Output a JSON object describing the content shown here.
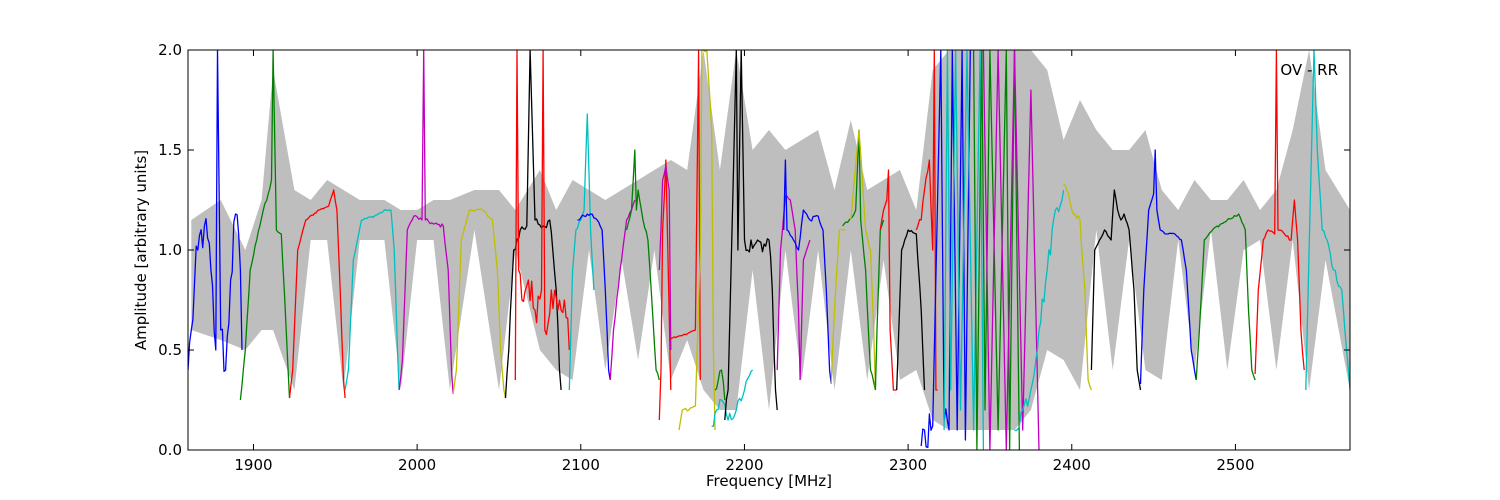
{
  "chart_data": {
    "type": "line",
    "title": "",
    "xlabel": "Frequency [MHz]",
    "ylabel": "Amplitude [arbitrary units]",
    "xlim": [
      1860,
      2570
    ],
    "ylim": [
      0.0,
      2.0
    ],
    "xticks": [
      1900,
      2000,
      2100,
      2200,
      2300,
      2400,
      2500
    ],
    "yticks": [
      0.0,
      0.5,
      1.0,
      1.5,
      2.0
    ],
    "xtick_labels": [
      "1900",
      "2000",
      "2100",
      "2200",
      "2300",
      "2400",
      "2500"
    ],
    "ytick_labels": [
      "0.0",
      "0.5",
      "1.0",
      "1.5",
      "2.0"
    ],
    "annotation": "OV - RR",
    "grid": false,
    "background_band": {
      "color": "#bebebe",
      "x": [
        1862,
        1880,
        1895,
        1905,
        1912,
        1925,
        1935,
        1945,
        1955,
        1965,
        1980,
        1990,
        2000,
        2010,
        2020,
        2035,
        2050,
        2060,
        2075,
        2085,
        2095,
        2105,
        2115,
        2125,
        2135,
        2145,
        2155,
        2165,
        2175,
        2185,
        2195,
        2205,
        2215,
        2225,
        2235,
        2245,
        2255,
        2265,
        2275,
        2285,
        2295,
        2305,
        2315,
        2325,
        2335,
        2345,
        2355,
        2365,
        2375,
        2385,
        2395,
        2405,
        2415,
        2425,
        2435,
        2445,
        2455,
        2465,
        2475,
        2485,
        2495,
        2505,
        2515,
        2525,
        2535,
        2545,
        2555,
        2570
      ],
      "upper": [
        1.15,
        1.25,
        1.0,
        1.25,
        1.9,
        1.3,
        1.25,
        1.35,
        1.3,
        1.25,
        1.25,
        1.2,
        1.2,
        1.25,
        1.25,
        1.3,
        1.3,
        1.2,
        1.4,
        1.2,
        1.35,
        1.3,
        1.25,
        1.3,
        1.35,
        1.4,
        1.45,
        1.4,
        2.0,
        1.4,
        2.0,
        1.5,
        1.6,
        1.5,
        1.55,
        1.6,
        1.3,
        1.65,
        1.3,
        1.35,
        1.4,
        1.2,
        1.9,
        2.0,
        2.0,
        2.0,
        2.0,
        2.0,
        2.0,
        1.9,
        1.55,
        1.75,
        1.6,
        1.5,
        1.5,
        1.6,
        1.3,
        1.2,
        1.35,
        1.25,
        1.25,
        1.35,
        1.2,
        1.3,
        1.6,
        2.0,
        1.4,
        1.2
      ],
      "lower": [
        0.6,
        0.55,
        0.5,
        0.6,
        0.6,
        0.3,
        1.05,
        1.05,
        0.3,
        1.05,
        1.05,
        0.3,
        1.05,
        1.05,
        0.3,
        1.1,
        0.3,
        1.0,
        0.5,
        0.4,
        0.35,
        1.0,
        0.4,
        0.95,
        0.45,
        1.0,
        0.35,
        0.55,
        0.3,
        0.2,
        0.2,
        0.9,
        0.2,
        1.0,
        0.35,
        1.0,
        0.3,
        1.0,
        0.35,
        0.95,
        0.35,
        0.4,
        0.15,
        0.1,
        0.1,
        0.1,
        0.1,
        0.1,
        0.2,
        0.5,
        0.45,
        0.3,
        1.1,
        0.4,
        1.05,
        0.4,
        0.35,
        1.05,
        0.4,
        1.1,
        0.4,
        1.0,
        1.05,
        0.4,
        1.05,
        0.3,
        0.95,
        0.3
      ]
    },
    "series": [
      {
        "color": "#0000ff",
        "x": [
          1860,
          1862,
          1866,
          1870,
          1874,
          1877,
          1878,
          1880,
          1883,
          1886,
          1889,
          1892,
          1893
        ],
        "y": [
          0.4,
          0.6,
          1.0,
          1.12,
          0.9,
          0.5,
          2.0,
          0.6,
          0.4,
          0.85,
          1.18,
          0.9,
          0.5
        ],
        "noise": 0.12
      },
      {
        "color": "#008000",
        "x": [
          1892,
          1895,
          1898,
          1902,
          1906,
          1909,
          1911,
          1912,
          1914,
          1917,
          1920,
          1922
        ],
        "y": [
          0.25,
          0.5,
          0.9,
          1.05,
          1.2,
          1.28,
          1.35,
          2.0,
          1.1,
          1.08,
          0.6,
          0.26
        ],
        "noise": 0.01
      },
      {
        "color": "#ff0000",
        "x": [
          1922,
          1924,
          1927,
          1932,
          1940,
          1946,
          1949,
          1951,
          1953,
          1955,
          1956
        ],
        "y": [
          0.26,
          0.4,
          1.0,
          1.15,
          1.2,
          1.22,
          1.3,
          1.2,
          0.8,
          0.35,
          0.26
        ],
        "noise": 0.005
      },
      {
        "color": "#00bfbf",
        "x": [
          1956,
          1958,
          1961,
          1966,
          1974,
          1981,
          1984,
          1986,
          1988,
          1989
        ],
        "y": [
          0.3,
          0.4,
          0.95,
          1.15,
          1.17,
          1.2,
          1.2,
          1.0,
          0.5,
          0.3
        ],
        "noise": 0.005
      },
      {
        "color": "#bf00bf",
        "x": [
          1989,
          1991,
          1994,
          1998,
          2003,
          2004,
          2005,
          2010,
          2016,
          2019,
          2021,
          2022
        ],
        "y": [
          0.3,
          0.45,
          1.1,
          1.17,
          1.15,
          2.0,
          1.15,
          1.13,
          1.12,
          0.9,
          0.4,
          0.28
        ],
        "noise": 0.01
      },
      {
        "color": "#bfbf00",
        "x": [
          2022,
          2024,
          2027,
          2032,
          2040,
          2046,
          2049,
          2051,
          2053,
          2054
        ],
        "y": [
          0.28,
          0.4,
          1.05,
          1.2,
          1.2,
          1.15,
          0.9,
          0.5,
          0.3,
          0.26
        ],
        "noise": 0.005
      },
      {
        "color": "#000000",
        "x": [
          2054,
          2056,
          2059,
          2063,
          2067,
          2069,
          2072,
          2077,
          2081,
          2085,
          2087,
          2088
        ],
        "y": [
          0.26,
          0.5,
          1.0,
          1.1,
          1.12,
          2.0,
          1.15,
          1.12,
          1.15,
          0.8,
          0.4,
          0.3
        ],
        "noise": 0.03
      },
      {
        "color": "#ff0000",
        "x": [
          2060,
          2061,
          2062,
          2064,
          2068,
          2072,
          2076,
          2077,
          2078,
          2082,
          2086,
          2090,
          2093
        ],
        "y": [
          0.35,
          2.0,
          0.9,
          0.75,
          0.85,
          0.7,
          0.8,
          2.0,
          0.6,
          0.8,
          0.7,
          0.75,
          0.5
        ],
        "noise": 0.09
      },
      {
        "color": "#00bfbf",
        "x": [
          2093,
          2095,
          2097,
          2100,
          2102,
          2104,
          2106,
          2108
        ],
        "y": [
          0.3,
          0.9,
          1.1,
          1.15,
          1.2,
          1.68,
          1.1,
          0.8
        ],
        "noise": 0.01
      },
      {
        "color": "#0000ff",
        "x": [
          2098,
          2102,
          2106,
          2110,
          2113,
          2115,
          2117,
          2118
        ],
        "y": [
          1.15,
          1.17,
          1.18,
          1.15,
          1.1,
          0.8,
          0.4,
          0.35
        ],
        "noise": 0.01
      },
      {
        "color": "#bf00bf",
        "x": [
          2118,
          2120,
          2124,
          2128,
          2131,
          2133
        ],
        "y": [
          0.35,
          0.6,
          0.9,
          1.15,
          1.2,
          1.25
        ],
        "noise": 0.01
      },
      {
        "color": "#008000",
        "x": [
          2128,
          2131,
          2133,
          2134,
          2135,
          2138,
          2141,
          2143,
          2146,
          2148
        ],
        "y": [
          1.1,
          1.2,
          1.5,
          1.2,
          1.3,
          1.15,
          1.05,
          0.8,
          0.4,
          0.35
        ],
        "noise": 0.01
      },
      {
        "color": "#ff0000",
        "x": [
          2148,
          2149,
          2150,
          2152,
          2155
        ],
        "y": [
          0.15,
          0.4,
          1.1,
          1.45,
          0.3
        ],
        "noise": 0.02
      },
      {
        "color": "#bf00bf",
        "x": [
          2148,
          2150,
          2152,
          2154,
          2155
        ],
        "y": [
          0.9,
          1.35,
          1.42,
          1.3,
          0.5
        ],
        "noise": 0.02
      },
      {
        "color": "#ff0000",
        "x": [
          2154,
          2156,
          2160,
          2165,
          2170,
          2172,
          2173
        ],
        "y": [
          0.55,
          0.56,
          0.57,
          0.58,
          0.6,
          2.0,
          0.35
        ],
        "noise": 0.003
      },
      {
        "color": "#bfbf00",
        "x": [
          2160,
          2162,
          2166,
          2170,
          2173,
          2174,
          2177,
          2180,
          2181,
          2182
        ],
        "y": [
          0.1,
          0.2,
          0.2,
          0.22,
          1.0,
          2.0,
          2.0,
          1.6,
          0.5,
          0.1
        ],
        "noise": 0.01
      },
      {
        "color": "#00bfbf",
        "x": [
          2180,
          2183,
          2186,
          2190,
          2195,
          2200,
          2205
        ],
        "y": [
          0.12,
          0.2,
          0.25,
          0.15,
          0.2,
          0.3,
          0.4
        ],
        "noise": 0.03
      },
      {
        "color": "#008000",
        "x": [
          2182,
          2184,
          2186,
          2188
        ],
        "y": [
          0.3,
          0.35,
          0.4,
          0.25
        ],
        "noise": 0.03
      },
      {
        "color": "#000000",
        "x": [
          2188,
          2190,
          2193,
          2195,
          2196,
          2198,
          2200,
          2202,
          2204,
          2208,
          2212,
          2215,
          2217,
          2219,
          2220
        ],
        "y": [
          0.15,
          0.3,
          1.3,
          2.0,
          1.0,
          2.0,
          1.05,
          1.0,
          1.05,
          1.05,
          1.03,
          1.05,
          0.8,
          0.3,
          0.2
        ],
        "noise": 0.05
      },
      {
        "color": "#bf00bf",
        "x": [
          2220,
          2222,
          2225,
          2228,
          2231,
          2233,
          2234
        ],
        "y": [
          0.4,
          1.0,
          1.27,
          1.25,
          1.1,
          0.7,
          0.35
        ],
        "noise": 0.01
      },
      {
        "color": "#0000ff",
        "x": [
          2224,
          2225,
          2226,
          2230,
          2233,
          2236,
          2240,
          2245,
          2248,
          2250,
          2252,
          2253
        ],
        "y": [
          1.1,
          1.45,
          1.1,
          1.05,
          1.0,
          1.2,
          1.15,
          1.17,
          1.1,
          0.8,
          0.4,
          0.33
        ],
        "noise": 0.01
      },
      {
        "color": "#bf00bf",
        "x": [
          2234,
          2236,
          2238,
          2240
        ],
        "y": [
          0.35,
          0.95,
          1.0,
          1.05
        ],
        "noise": 0.01
      },
      {
        "color": "#bfbf00",
        "x": [
          2253,
          2255,
          2258,
          2262
        ],
        "y": [
          0.33,
          0.7,
          1.1,
          1.1
        ],
        "noise": 0.01
      },
      {
        "color": "#008000",
        "x": [
          2260,
          2264,
          2268,
          2270,
          2271,
          2274,
          2277,
          2280
        ],
        "y": [
          1.12,
          1.15,
          1.2,
          1.6,
          1.15,
          0.9,
          0.4,
          0.3
        ],
        "noise": 0.01
      },
      {
        "color": "#bfbf00",
        "x": [
          2265,
          2270,
          2274,
          2277,
          2279,
          2280
        ],
        "y": [
          1.15,
          1.6,
          1.1,
          1.0,
          0.6,
          0.3
        ],
        "noise": 0.01
      },
      {
        "color": "#008000",
        "x": [
          2280,
          2281,
          2283,
          2285
        ],
        "y": [
          0.3,
          0.6,
          1.1,
          1.15
        ],
        "noise": 0.005
      },
      {
        "color": "#ff0000",
        "x": [
          2283,
          2285,
          2287,
          2288,
          2289,
          2291,
          2293
        ],
        "y": [
          1.1,
          1.2,
          1.25,
          1.4,
          0.6,
          0.3,
          0.3
        ],
        "noise": 0.01
      },
      {
        "color": "#000000",
        "x": [
          2293,
          2296,
          2300,
          2305,
          2308,
          2310
        ],
        "y": [
          0.3,
          1.0,
          1.1,
          1.08,
          0.7,
          0.3
        ],
        "noise": 0.005
      },
      {
        "color": "#ff0000",
        "x": [
          2305,
          2308,
          2310,
          2313,
          2315,
          2316,
          2317,
          2318
        ],
        "y": [
          1.1,
          1.15,
          1.3,
          1.45,
          1.0,
          2.0,
          0.3,
          0.3
        ],
        "noise": 0.02
      },
      {
        "color": "#0000ff",
        "x": [
          2308,
          2310,
          2315,
          2320,
          2322,
          2325,
          2327,
          2330,
          2333,
          2335,
          2338
        ],
        "y": [
          0.02,
          0.1,
          0.12,
          2.0,
          0.15,
          0.1,
          2.0,
          0.1,
          2.0,
          0.05,
          2.0
        ],
        "noise": 0.1
      },
      {
        "color": "#00bfbf",
        "x": [
          2322,
          2324,
          2326,
          2329,
          2332,
          2336,
          2340,
          2344,
          2346
        ],
        "y": [
          0.1,
          2.0,
          0.3,
          2.0,
          0.2,
          2.0,
          0.1,
          2.0,
          0.0
        ],
        "noise": 0.15
      },
      {
        "color": "#008000",
        "x": [
          2340,
          2342,
          2345,
          2347,
          2350,
          2355,
          2360,
          2362,
          2365,
          2368
        ],
        "y": [
          2.0,
          0.0,
          2.0,
          0.2,
          2.0,
          0.1,
          2.0,
          0.0,
          2.0,
          0.0
        ],
        "noise": 0.5
      },
      {
        "color": "#bf00bf",
        "x": [
          2346,
          2350,
          2355,
          2360,
          2365,
          2370,
          2375,
          2380
        ],
        "y": [
          2.0,
          0.0,
          2.0,
          0.0,
          2.0,
          0.1,
          1.8,
          0.0
        ],
        "noise": 0.9
      },
      {
        "color": "#00bfbf",
        "x": [
          2365,
          2370,
          2375,
          2380,
          2385,
          2390,
          2395
        ],
        "y": [
          0.1,
          0.2,
          0.3,
          0.6,
          0.9,
          1.2,
          1.3
        ],
        "noise": 0.05
      },
      {
        "color": "#bfbf00",
        "x": [
          2395,
          2397,
          2400,
          2405,
          2408,
          2410,
          2412
        ],
        "y": [
          1.33,
          1.3,
          1.2,
          1.15,
          0.8,
          0.35,
          0.3
        ],
        "noise": 0.02
      },
      {
        "color": "#000000",
        "x": [
          2412,
          2414,
          2417,
          2420,
          2424,
          2426,
          2428,
          2430,
          2432,
          2435,
          2438,
          2440,
          2442
        ],
        "y": [
          0.4,
          1.0,
          1.05,
          1.1,
          1.05,
          1.3,
          1.2,
          1.15,
          1.18,
          1.1,
          0.8,
          0.4,
          0.3
        ],
        "noise": 0.005
      },
      {
        "color": "#0000ff",
        "x": [
          2442,
          2444,
          2447,
          2450,
          2451,
          2452,
          2454,
          2458,
          2463,
          2467,
          2470,
          2473,
          2476
        ],
        "y": [
          0.33,
          0.8,
          1.2,
          1.28,
          1.5,
          1.2,
          1.1,
          1.08,
          1.08,
          1.05,
          0.9,
          0.5,
          0.35
        ],
        "noise": 0.005
      },
      {
        "color": "#008000",
        "x": [
          2476,
          2478,
          2481,
          2486,
          2495,
          2502,
          2506,
          2508,
          2510,
          2512
        ],
        "y": [
          0.35,
          0.6,
          1.05,
          1.1,
          1.15,
          1.18,
          1.1,
          0.7,
          0.4,
          0.35
        ],
        "noise": 0.005
      },
      {
        "color": "#ff0000",
        "x": [
          2512,
          2514,
          2517,
          2520,
          2524,
          2525,
          2526,
          2530,
          2534,
          2536,
          2538,
          2540,
          2542
        ],
        "y": [
          0.38,
          0.8,
          1.05,
          1.1,
          1.08,
          2.0,
          1.1,
          1.08,
          1.05,
          1.25,
          1.05,
          0.6,
          0.4
        ],
        "noise": 0.01
      },
      {
        "color": "#00bfbf",
        "x": [
          2543,
          2545,
          2548,
          2550,
          2553,
          2556,
          2560,
          2565,
          2570
        ],
        "y": [
          0.3,
          1.0,
          2.0,
          1.5,
          1.1,
          1.05,
          0.9,
          0.8,
          0.3
        ],
        "noise": 0.02
      }
    ]
  }
}
